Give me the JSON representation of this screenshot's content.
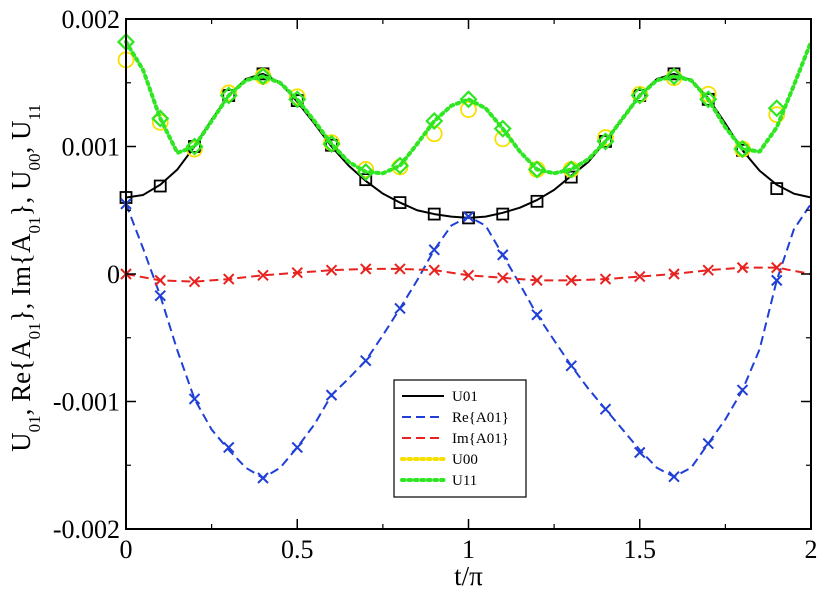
{
  "chart_data": {
    "type": "line",
    "xlabel": "t/π",
    "ylabel": {
      "parts": [
        {
          "t": "U",
          "sub": "01"
        },
        {
          "t": ", Re{A",
          "sub": "01"
        },
        {
          "t": "}, Im{A",
          "sub": "01"
        },
        {
          "t": "}, U",
          "sub": "00"
        },
        {
          "t": ", U",
          "sub": "11"
        }
      ]
    },
    "xlim": [
      0,
      2
    ],
    "ylim": [
      -0.002,
      0.002
    ],
    "xticks": [
      0,
      0.5,
      1,
      1.5,
      2
    ],
    "xtick_labels": [
      "0",
      "0.5",
      "1",
      "1.5",
      "2"
    ],
    "yticks": [
      -0.002,
      -0.001,
      0,
      0.001,
      0.002
    ],
    "ytick_labels": [
      "-0.002",
      "-0.001",
      "0",
      "0.001",
      "0.002"
    ],
    "legend": {
      "placement": "bottom-center",
      "entries": [
        "U01",
        "Re{A01}",
        "Im{A01}",
        "U00",
        "U11"
      ]
    },
    "series": [
      {
        "name": "U01",
        "color": "#000000",
        "line": "solid",
        "marker": "square",
        "x": [
          0,
          0.05,
          0.1,
          0.15,
          0.2,
          0.25,
          0.3,
          0.35,
          0.4,
          0.45,
          0.5,
          0.55,
          0.6,
          0.65,
          0.7,
          0.75,
          0.8,
          0.85,
          0.9,
          0.95,
          1.0,
          1.05,
          1.1,
          1.15,
          1.2,
          1.25,
          1.3,
          1.35,
          1.4,
          1.45,
          1.5,
          1.55,
          1.6,
          1.65,
          1.7,
          1.75,
          1.8,
          1.85,
          1.9,
          1.95,
          2.0
        ],
        "y": [
          0.0006,
          0.00062,
          0.0007,
          0.00082,
          0.001,
          0.00121,
          0.0014,
          0.00153,
          0.00157,
          0.0015,
          0.00135,
          0.00118,
          0.001,
          0.00085,
          0.00073,
          0.00063,
          0.00056,
          0.0005,
          0.00047,
          0.00045,
          0.00044,
          0.00045,
          0.00048,
          0.00052,
          0.00058,
          0.00066,
          0.00077,
          0.00088,
          0.00104,
          0.00122,
          0.0014,
          0.00153,
          0.00157,
          0.00152,
          0.00138,
          0.00118,
          0.00097,
          0.00081,
          0.0007,
          0.00063,
          0.0006
        ],
        "marker_x": [
          0,
          0.1,
          0.2,
          0.3,
          0.4,
          0.5,
          0.6,
          0.7,
          0.8,
          0.9,
          1.0,
          1.1,
          1.2,
          1.3,
          1.4,
          1.5,
          1.6,
          1.7,
          1.8,
          1.9
        ],
        "marker_y": [
          0.0006,
          0.00069,
          0.001,
          0.0014,
          0.00157,
          0.00136,
          0.00101,
          0.00074,
          0.00056,
          0.00047,
          0.00044,
          0.00047,
          0.00057,
          0.00076,
          0.00104,
          0.0014,
          0.00157,
          0.00137,
          0.00097,
          0.00067
        ]
      },
      {
        "name": "Re{A01}",
        "color": "#1f3fd6",
        "line": "dashed",
        "marker": "x",
        "x": [
          0,
          0.05,
          0.1,
          0.15,
          0.2,
          0.25,
          0.3,
          0.35,
          0.4,
          0.45,
          0.5,
          0.55,
          0.6,
          0.65,
          0.7,
          0.75,
          0.8,
          0.85,
          0.9,
          0.95,
          1.0,
          1.05,
          1.1,
          1.15,
          1.2,
          1.25,
          1.3,
          1.35,
          1.4,
          1.45,
          1.5,
          1.55,
          1.6,
          1.65,
          1.7,
          1.75,
          1.8,
          1.85,
          1.9,
          1.95,
          2.0
        ],
        "y": [
          0.00055,
          0.0002,
          -0.00017,
          -0.0006,
          -0.00098,
          -0.00122,
          -0.00138,
          -0.00152,
          -0.0016,
          -0.00152,
          -0.00136,
          -0.00118,
          -0.00095,
          -0.00082,
          -0.00068,
          -0.00048,
          -0.00027,
          -5e-05,
          0.00019,
          0.00038,
          0.00045,
          0.00038,
          0.00015,
          -8e-05,
          -0.00032,
          -0.00052,
          -0.00072,
          -0.0009,
          -0.00106,
          -0.00122,
          -0.00138,
          -0.00152,
          -0.00159,
          -0.00152,
          -0.00133,
          -0.00114,
          -0.00091,
          -0.00059,
          -5e-05,
          0.00035,
          0.00055
        ],
        "marker_x": [
          0,
          0.1,
          0.2,
          0.3,
          0.4,
          0.5,
          0.6,
          0.7,
          0.8,
          0.9,
          1.0,
          1.1,
          1.2,
          1.3,
          1.4,
          1.5,
          1.6,
          1.7,
          1.8,
          1.9
        ],
        "marker_y": [
          0.00055,
          -0.00017,
          -0.00098,
          -0.00136,
          -0.0016,
          -0.00136,
          -0.00095,
          -0.00068,
          -0.00027,
          0.00019,
          0.00045,
          0.00015,
          -0.00032,
          -0.00072,
          -0.00106,
          -0.0014,
          -0.00159,
          -0.00133,
          -0.00091,
          -5e-05
        ]
      },
      {
        "name": "Im{A01}",
        "color": "#e8231f",
        "line": "dashed",
        "marker": "x",
        "x": [
          0,
          0.1,
          0.2,
          0.3,
          0.4,
          0.5,
          0.6,
          0.7,
          0.8,
          0.9,
          1.0,
          1.1,
          1.2,
          1.3,
          1.4,
          1.5,
          1.6,
          1.7,
          1.8,
          1.9,
          2.0
        ],
        "y": [
          0.0,
          -5e-05,
          -6e-05,
          -4e-05,
          -1e-05,
          1e-05,
          3e-05,
          4e-05,
          4e-05,
          3e-05,
          -1e-05,
          -3e-05,
          -5e-05,
          -5e-05,
          -4e-05,
          -2e-05,
          0.0,
          3e-05,
          5e-05,
          5e-05,
          0.0
        ],
        "marker_x": [
          0,
          0.1,
          0.2,
          0.3,
          0.4,
          0.5,
          0.6,
          0.7,
          0.8,
          0.9,
          1.0,
          1.1,
          1.2,
          1.3,
          1.4,
          1.5,
          1.6,
          1.7,
          1.8,
          1.9
        ],
        "marker_y": [
          0.0,
          -5e-05,
          -6e-05,
          -4e-05,
          -1e-05,
          1e-05,
          3e-05,
          4e-05,
          4e-05,
          3e-05,
          -1e-05,
          -3e-05,
          -5e-05,
          -5e-05,
          -4e-05,
          -2e-05,
          0.0,
          3e-05,
          5e-05,
          5e-05
        ]
      },
      {
        "name": "U00",
        "color": "#f5e000",
        "line": "dotted",
        "marker": "circle",
        "x": [],
        "y": [],
        "marker_x": [
          0,
          0.1,
          0.2,
          0.3,
          0.4,
          0.5,
          0.6,
          0.7,
          0.8,
          0.9,
          1.0,
          1.1,
          1.2,
          1.3,
          1.4,
          1.5,
          1.6,
          1.7,
          1.8,
          1.9
        ],
        "marker_y": [
          0.00168,
          0.00119,
          0.00098,
          0.00142,
          0.00155,
          0.00139,
          0.00103,
          0.00082,
          0.00084,
          0.0011,
          0.00129,
          0.00106,
          0.00082,
          0.00082,
          0.00107,
          0.00141,
          0.00154,
          0.00141,
          0.00098,
          0.00125
        ]
      },
      {
        "name": "U11",
        "color": "#2ee621",
        "line": "dotted",
        "marker": "diamond",
        "x": [
          0,
          0.05,
          0.1,
          0.15,
          0.2,
          0.25,
          0.3,
          0.35,
          0.4,
          0.45,
          0.5,
          0.55,
          0.6,
          0.65,
          0.7,
          0.75,
          0.8,
          0.85,
          0.9,
          0.95,
          1.0,
          1.05,
          1.1,
          1.15,
          1.2,
          1.25,
          1.3,
          1.35,
          1.4,
          1.45,
          1.5,
          1.55,
          1.6,
          1.65,
          1.7,
          1.75,
          1.8,
          1.85,
          1.9,
          1.95,
          2.0
        ],
        "y": [
          0.00182,
          0.0016,
          0.00122,
          0.00095,
          0.001,
          0.0012,
          0.0014,
          0.00152,
          0.00155,
          0.0015,
          0.00137,
          0.0012,
          0.00102,
          0.00088,
          0.0008,
          0.00079,
          0.00085,
          0.00102,
          0.0012,
          0.00132,
          0.00137,
          0.0013,
          0.00114,
          0.00096,
          0.00082,
          0.00079,
          0.00082,
          0.0009,
          0.00104,
          0.00122,
          0.0014,
          0.00152,
          0.00155,
          0.00152,
          0.00137,
          0.00115,
          0.00098,
          0.00096,
          0.00115,
          0.00148,
          0.00182
        ],
        "marker_x": [
          0,
          0.1,
          0.2,
          0.3,
          0.4,
          0.5,
          0.6,
          0.7,
          0.8,
          0.9,
          1.0,
          1.1,
          1.2,
          1.3,
          1.4,
          1.5,
          1.6,
          1.7,
          1.8,
          1.9
        ],
        "marker_y": [
          0.00182,
          0.00122,
          0.001,
          0.0014,
          0.00155,
          0.00137,
          0.00102,
          0.0008,
          0.00085,
          0.0012,
          0.00137,
          0.00114,
          0.00082,
          0.00082,
          0.00104,
          0.0014,
          0.00155,
          0.00137,
          0.00098,
          0.0013
        ]
      }
    ]
  }
}
